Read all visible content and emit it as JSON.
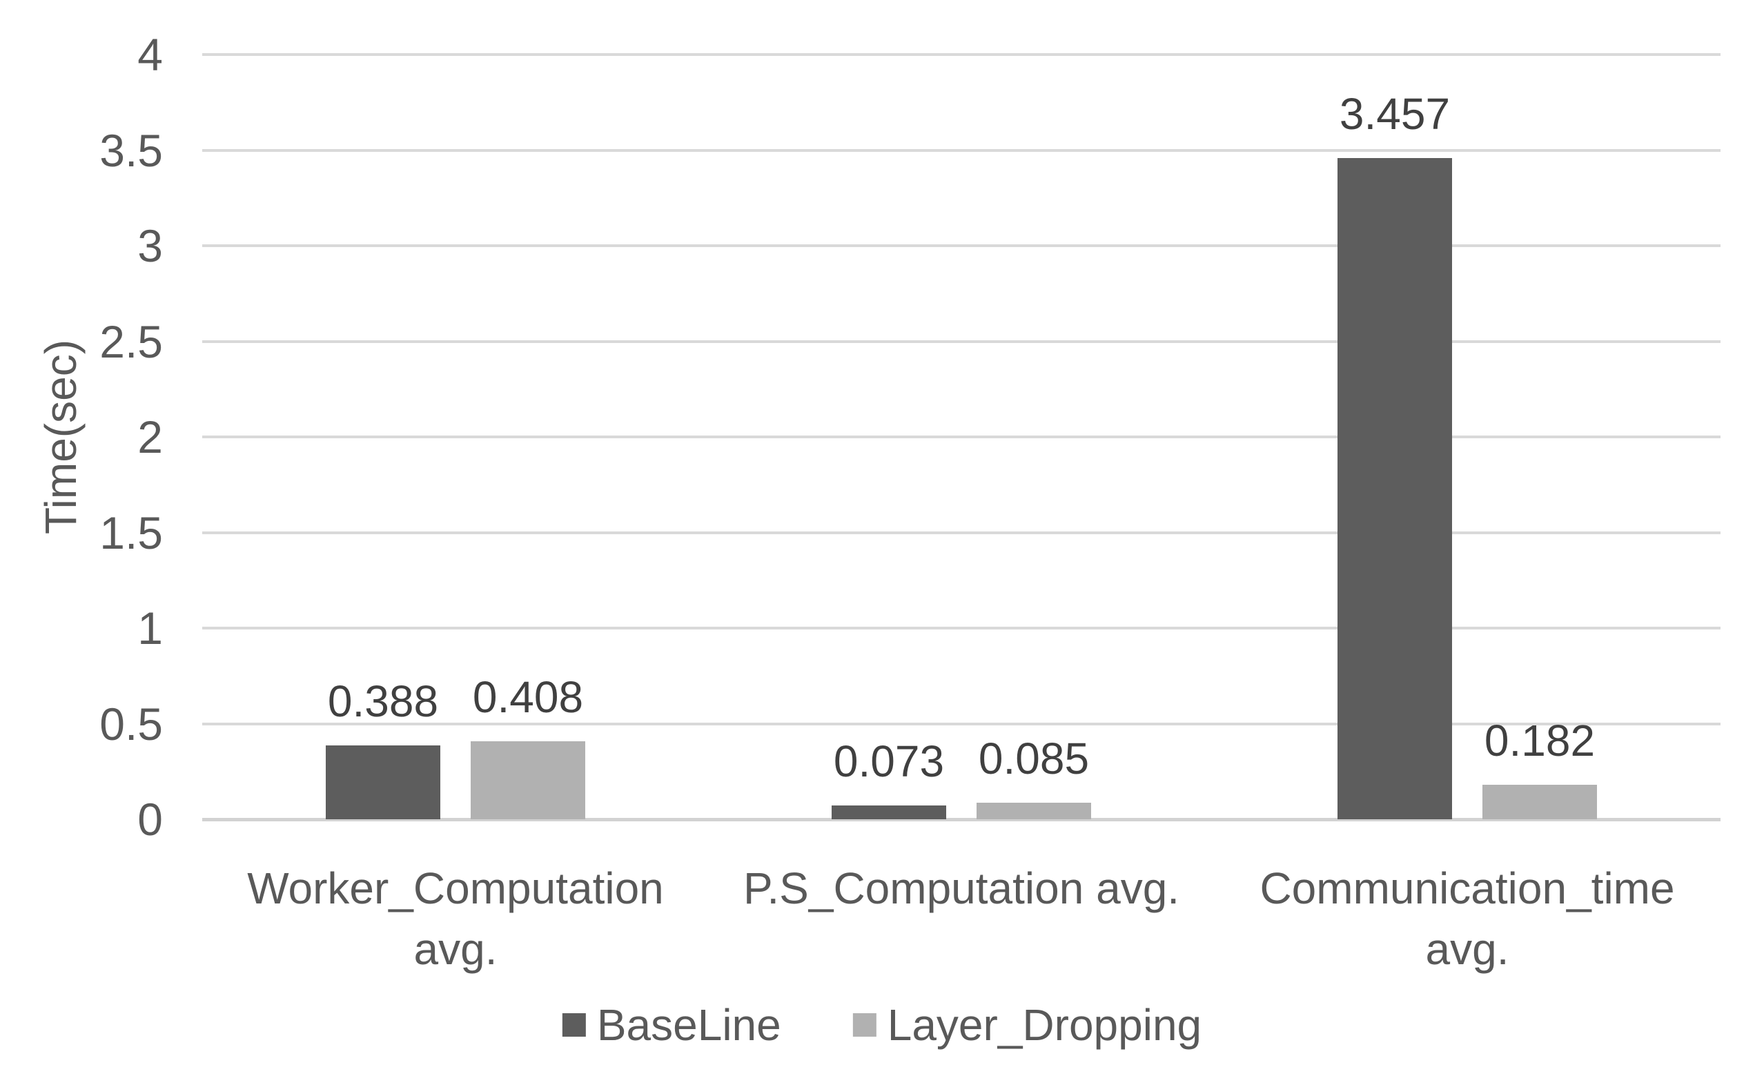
{
  "chart_data": {
    "type": "bar",
    "title": "",
    "xlabel": "",
    "ylabel": "Time(sec)",
    "ylim": [
      0,
      4
    ],
    "grid": true,
    "legend_position": "bottom",
    "yticks": [
      {
        "value": 0,
        "label": "0"
      },
      {
        "value": 0.5,
        "label": "0.5"
      },
      {
        "value": 1,
        "label": "1"
      },
      {
        "value": 1.5,
        "label": "1.5"
      },
      {
        "value": 2,
        "label": "2"
      },
      {
        "value": 2.5,
        "label": "2.5"
      },
      {
        "value": 3,
        "label": "3"
      },
      {
        "value": 3.5,
        "label": "3.5"
      },
      {
        "value": 4,
        "label": "4"
      }
    ],
    "categories": [
      {
        "full": "Worker_Computation avg.",
        "lines": [
          "Worker_Computation",
          "avg."
        ]
      },
      {
        "full": "P.S_Computation avg.",
        "lines": [
          "P.S_Computation avg."
        ]
      },
      {
        "full": "Communication_time avg.",
        "lines": [
          "Communication_time",
          "avg."
        ]
      }
    ],
    "series": [
      {
        "name": "BaseLine",
        "color": "#5d5d5d",
        "values": [
          0.388,
          0.073,
          3.457
        ],
        "labels": [
          "0.388",
          "0.073",
          "3.457"
        ]
      },
      {
        "name": "Layer_Dropping",
        "color": "#b1b1b1",
        "values": [
          0.408,
          0.085,
          0.182
        ],
        "labels": [
          "0.408",
          "0.085",
          "0.182"
        ]
      }
    ],
    "colors": {
      "axis_text": "#595959",
      "data_label_text": "#404040",
      "gridline": "#d9d9d9",
      "axis_line": "#d2d2d2",
      "background": "#ffffff"
    }
  }
}
